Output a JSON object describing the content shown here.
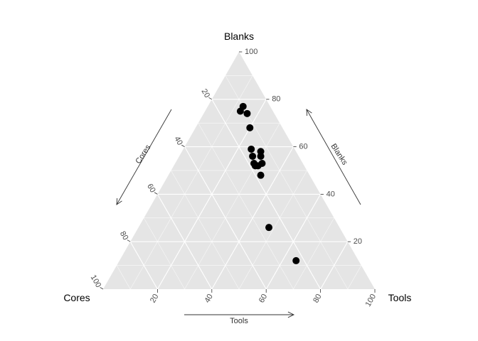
{
  "chart_data": {
    "type": "scatter",
    "subtype": "ternary",
    "vertex_labels": {
      "top": "Blanks",
      "left": "Cores",
      "right": "Tools"
    },
    "axis_titles": {
      "left": "Cores",
      "right": "Blanks",
      "bottom": "Tools"
    },
    "ticks": [
      "20",
      "40",
      "60",
      "80",
      "100"
    ],
    "grid": true,
    "background": "#e5e5e5",
    "gridline_color": "#ffffff",
    "point_color": "#000000",
    "points": [
      {
        "tools": 13,
        "blanks": 77,
        "cores": 10
      },
      {
        "tools": 13,
        "blanks": 75,
        "cores": 12
      },
      {
        "tools": 16,
        "blanks": 74,
        "cores": 10
      },
      {
        "tools": 20,
        "blanks": 68,
        "cores": 12
      },
      {
        "tools": 25,
        "blanks": 59,
        "cores": 16
      },
      {
        "tools": 29,
        "blanks": 58,
        "cores": 13
      },
      {
        "tools": 27,
        "blanks": 56,
        "cores": 17
      },
      {
        "tools": 30,
        "blanks": 56,
        "cores": 14
      },
      {
        "tools": 29,
        "blanks": 53,
        "cores": 18
      },
      {
        "tools": 30,
        "blanks": 52,
        "cores": 18
      },
      {
        "tools": 31,
        "blanks": 52,
        "cores": 17
      },
      {
        "tools": 32,
        "blanks": 53,
        "cores": 15
      },
      {
        "tools": 34,
        "blanks": 48,
        "cores": 18
      },
      {
        "tools": 48,
        "blanks": 26,
        "cores": 26
      },
      {
        "tools": 65,
        "blanks": 12,
        "cores": 23
      }
    ]
  }
}
